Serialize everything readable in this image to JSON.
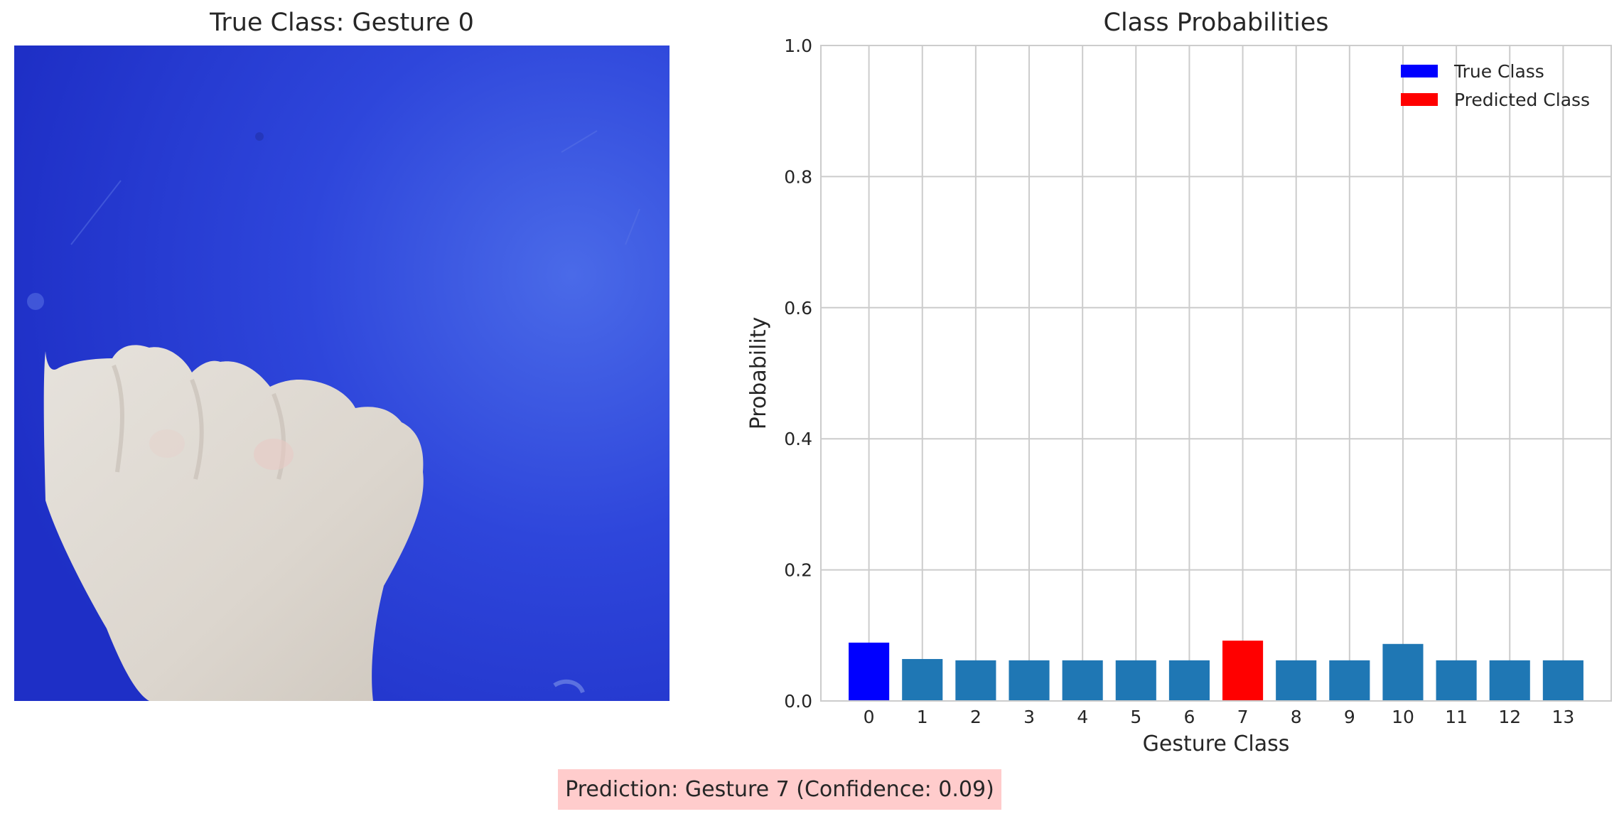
{
  "image_panel": {
    "title": "True Class: Gesture 0"
  },
  "prediction": {
    "text": "Prediction: Gesture 7 (Confidence: 0.09)"
  },
  "chart_data": {
    "type": "bar",
    "title": "Class Probabilities",
    "xlabel": "Gesture Class",
    "ylabel": "Probability",
    "ylim": [
      0,
      1.0
    ],
    "yticks": [
      "0.0",
      "0.2",
      "0.4",
      "0.6",
      "0.8",
      "1.0"
    ],
    "ytick_values": [
      0,
      0.2,
      0.4,
      0.6,
      0.8,
      1.0
    ],
    "categories": [
      "0",
      "1",
      "2",
      "3",
      "4",
      "5",
      "6",
      "7",
      "8",
      "9",
      "10",
      "11",
      "12",
      "13"
    ],
    "values": [
      0.089,
      0.064,
      0.062,
      0.062,
      0.062,
      0.062,
      0.062,
      0.092,
      0.062,
      0.062,
      0.087,
      0.062,
      0.062,
      0.062
    ],
    "true_class_index": 0,
    "predicted_class_index": 7,
    "grid": true,
    "legend_position": "top-right",
    "legend": [
      {
        "label": "True Class",
        "color": "#0000ff"
      },
      {
        "label": "Predicted Class",
        "color": "#ff0000"
      }
    ],
    "colors": {
      "default_bar": "#1f77b4",
      "true_bar": "#0000ff",
      "predicted_bar": "#ff0000",
      "grid": "#cccccc"
    }
  }
}
